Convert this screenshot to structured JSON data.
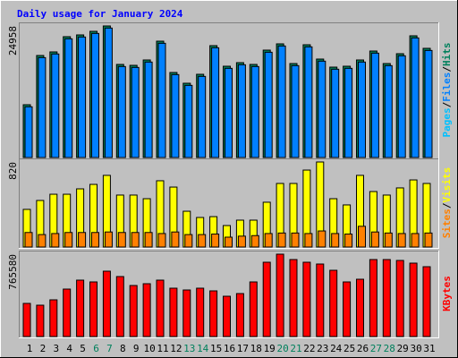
{
  "chart_data": [
    {
      "type": "bar",
      "title": "Daily usage for January 2024",
      "ylim": [
        0,
        24958
      ],
      "yticks": [
        24958
      ],
      "legend_extra": {
        "name": "Pages",
        "color": "#00C0FF"
      },
      "separator": "/",
      "series": [
        {
          "name": "Files",
          "color": "#0080FF",
          "values": [
            9620,
            18950,
            19640,
            22520,
            22860,
            23540,
            24560,
            17260,
            17090,
            18110,
            21670,
            15730,
            13690,
            15390,
            20820,
            16920,
            17600,
            17260,
            19970,
            21160,
            17430,
            20990,
            18280,
            16750,
            16920,
            18110,
            19800,
            17430,
            19300,
            22690,
            20310
          ]
        },
        {
          "name": "Hits",
          "color": "#00805C",
          "values": [
            10017,
            19355,
            20035,
            22921,
            23260,
            23939,
            24958,
            17658,
            17488,
            18506,
            22072,
            16130,
            14092,
            15790,
            21223,
            17318,
            17997,
            17658,
            20374,
            21563,
            17827,
            21393,
            18676,
            17148,
            17318,
            18506,
            20204,
            17827,
            19695,
            23091,
            20714
          ]
        }
      ]
    },
    {
      "type": "bar",
      "ylim": [
        0,
        820
      ],
      "yticks": [
        820
      ],
      "separator": "/",
      "series": [
        {
          "name": "Sites",
          "color": "#FF8000",
          "values": [
            140,
            120,
            130,
            140,
            140,
            140,
            145,
            140,
            140,
            140,
            130,
            145,
            120,
            120,
            125,
            95,
            105,
            110,
            130,
            135,
            135,
            130,
            155,
            130,
            125,
            200,
            145,
            135,
            130,
            130,
            135
          ]
        },
        {
          "name": "Visits",
          "color": "#FFFF00",
          "values": [
            363,
            449,
            509,
            509,
            561,
            604,
            691,
            501,
            501,
            466,
            639,
            578,
            345,
            285,
            293,
            207,
            259,
            259,
            432,
            613,
            613,
            742,
            820,
            466,
            406,
            691,
            535,
            501,
            570,
            647,
            613
          ]
        }
      ]
    },
    {
      "type": "bar",
      "ylim": [
        0,
        765580
      ],
      "yticks": [
        765580
      ],
      "categories": [
        "1",
        "2",
        "3",
        "4",
        "5",
        "6",
        "7",
        "8",
        "9",
        "10",
        "11",
        "12",
        "13",
        "14",
        "15",
        "16",
        "17",
        "18",
        "19",
        "20",
        "21",
        "22",
        "23",
        "24",
        "25",
        "26",
        "27",
        "28",
        "29",
        "30",
        "31"
      ],
      "weekend_days": [
        "6",
        "7",
        "13",
        "14",
        "20",
        "21",
        "27",
        "28"
      ],
      "weekend_color": "#00805C",
      "weekday_color": "#000000",
      "series": [
        {
          "name": "KBytes",
          "color": "#FF0000",
          "values": [
            307900,
            291250,
            341180,
            441040,
            524260,
            507610,
            607470,
            557540,
            474330,
            490970,
            524260,
            449360,
            432720,
            449360,
            424400,
            374470,
            399430,
            507610,
            690690,
            765580,
            715650,
            690690,
            674040,
            615790,
            507610,
            532580,
            715650,
            715650,
            707330,
            682370,
            649080
          ]
        }
      ]
    }
  ]
}
